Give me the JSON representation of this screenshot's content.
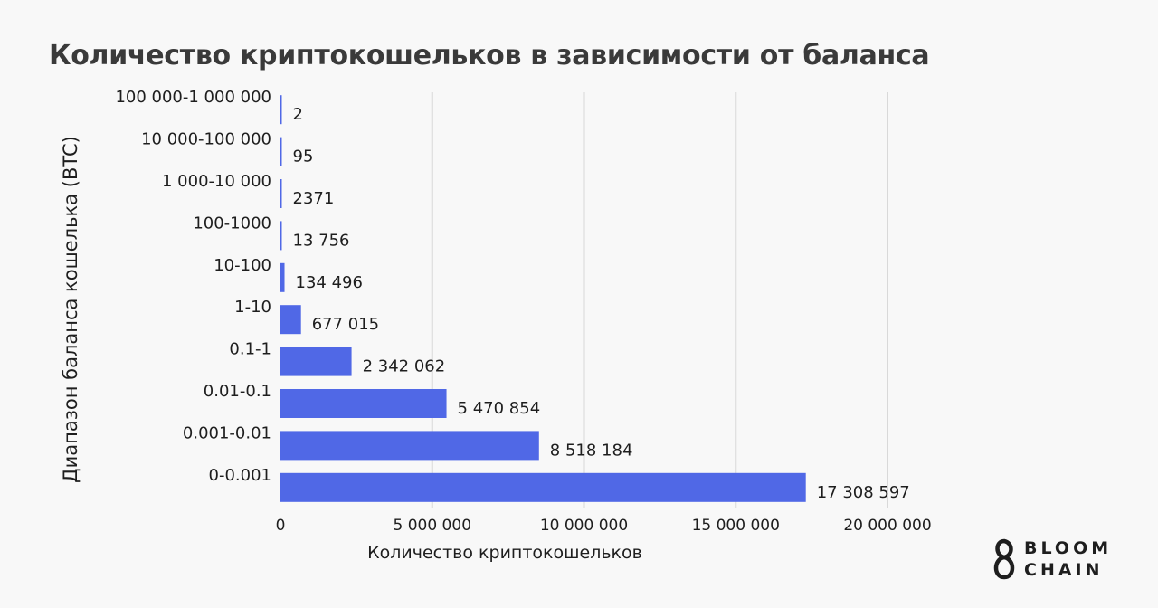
{
  "chart_data": {
    "type": "bar",
    "orientation": "horizontal",
    "title": "Количество криптокошельков в зависимости от баланса",
    "xlabel": "Количество  криптокошельков",
    "ylabel": "Диапазон баланса кошелька (BTC)",
    "categories": [
      "0-0.001",
      "0.001-0.01",
      "0.01-0.1",
      "0.1-1",
      "1-10",
      "10-100",
      "100-1000",
      "1 000-10 000",
      "10 000-100 000",
      "100 000-1 000 000"
    ],
    "values": [
      17308597,
      8518184,
      5470854,
      2342062,
      677015,
      134496,
      13756,
      2371,
      95,
      2
    ],
    "value_labels": [
      "17 308 597",
      "8 518 184",
      "5 470 854",
      "2 342 062",
      "677 015",
      "134 496",
      "13 756",
      "2371",
      "95",
      "2"
    ],
    "xlim": [
      0,
      20000000
    ],
    "xticks": [
      0,
      5000000,
      10000000,
      15000000,
      20000000
    ],
    "xtick_labels": [
      "0",
      "5 000 000",
      "10 000 000",
      "15 000 000",
      "20 000 000"
    ],
    "grid": "vertical",
    "bar_color": "#5068e6",
    "grid_color": "#d9d9d9"
  },
  "logo": {
    "line1": "BLOOM",
    "line2": "CHAIN"
  }
}
